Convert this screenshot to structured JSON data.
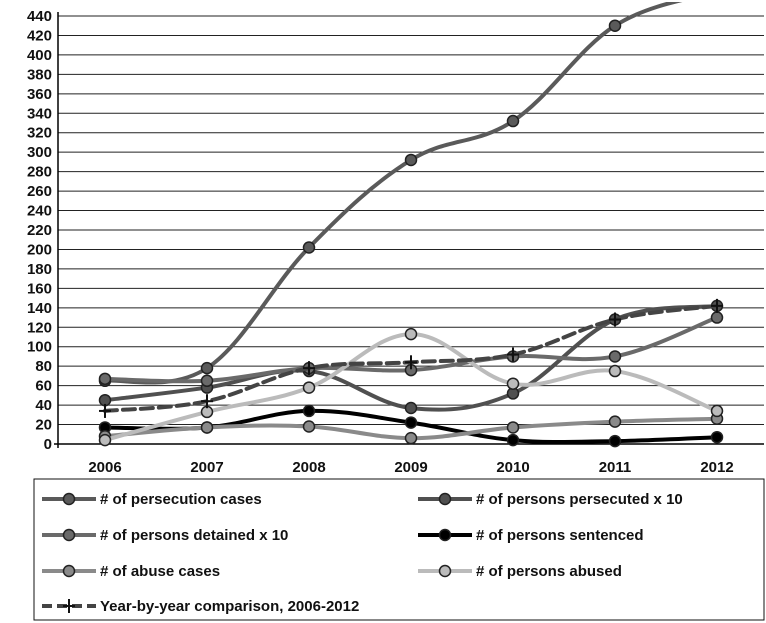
{
  "chart_data": {
    "type": "line",
    "title": "",
    "xlabel": "",
    "ylabel": "",
    "x": [
      "2006",
      "2007",
      "2008",
      "2009",
      "2010",
      "2011",
      "2012"
    ],
    "ylim": [
      0,
      440
    ],
    "yticks": [
      0,
      20,
      40,
      60,
      80,
      100,
      120,
      140,
      160,
      180,
      200,
      220,
      240,
      260,
      280,
      300,
      320,
      340,
      360,
      380,
      400,
      420,
      440
    ],
    "grid": "horizontal",
    "legend_position": "bottom",
    "series": [
      {
        "name": "# of persecution cases",
        "values": [
          65,
          78,
          202,
          292,
          332,
          430,
          465
        ],
        "color": "#5a5a5a",
        "marker": "circle",
        "dash": "solid",
        "width": 4
      },
      {
        "name": "# of persons persecuted x 10",
        "values": [
          45,
          58,
          75,
          37,
          52,
          128,
          142
        ],
        "color": "#505050",
        "marker": "circle",
        "dash": "solid",
        "width": 4
      },
      {
        "name": "# of persons detained x 10",
        "values": [
          67,
          65,
          78,
          76,
          90,
          90,
          130
        ],
        "color": "#6a6a6a",
        "marker": "circle",
        "dash": "solid",
        "width": 4
      },
      {
        "name": "# of persons sentenced",
        "values": [
          17,
          17,
          34,
          22,
          4,
          3,
          7
        ],
        "color": "#000000",
        "marker": "circle",
        "dash": "solid",
        "width": 4
      },
      {
        "name": "# of abuse cases",
        "values": [
          8,
          17,
          18,
          6,
          17,
          23,
          26
        ],
        "color": "#8a8a8a",
        "marker": "circle",
        "dash": "solid",
        "width": 4
      },
      {
        "name": "# of persons abused",
        "values": [
          4,
          33,
          58,
          113,
          62,
          75,
          34
        ],
        "color": "#bbbbbb",
        "marker": "circle",
        "dash": "solid",
        "width": 4
      },
      {
        "name": "Year-by-year comparison, 2006-2012",
        "values": [
          34,
          44,
          78,
          84,
          92,
          128,
          142
        ],
        "color": "#444444",
        "marker": "plus",
        "dash": "dashed",
        "width": 4
      }
    ]
  }
}
